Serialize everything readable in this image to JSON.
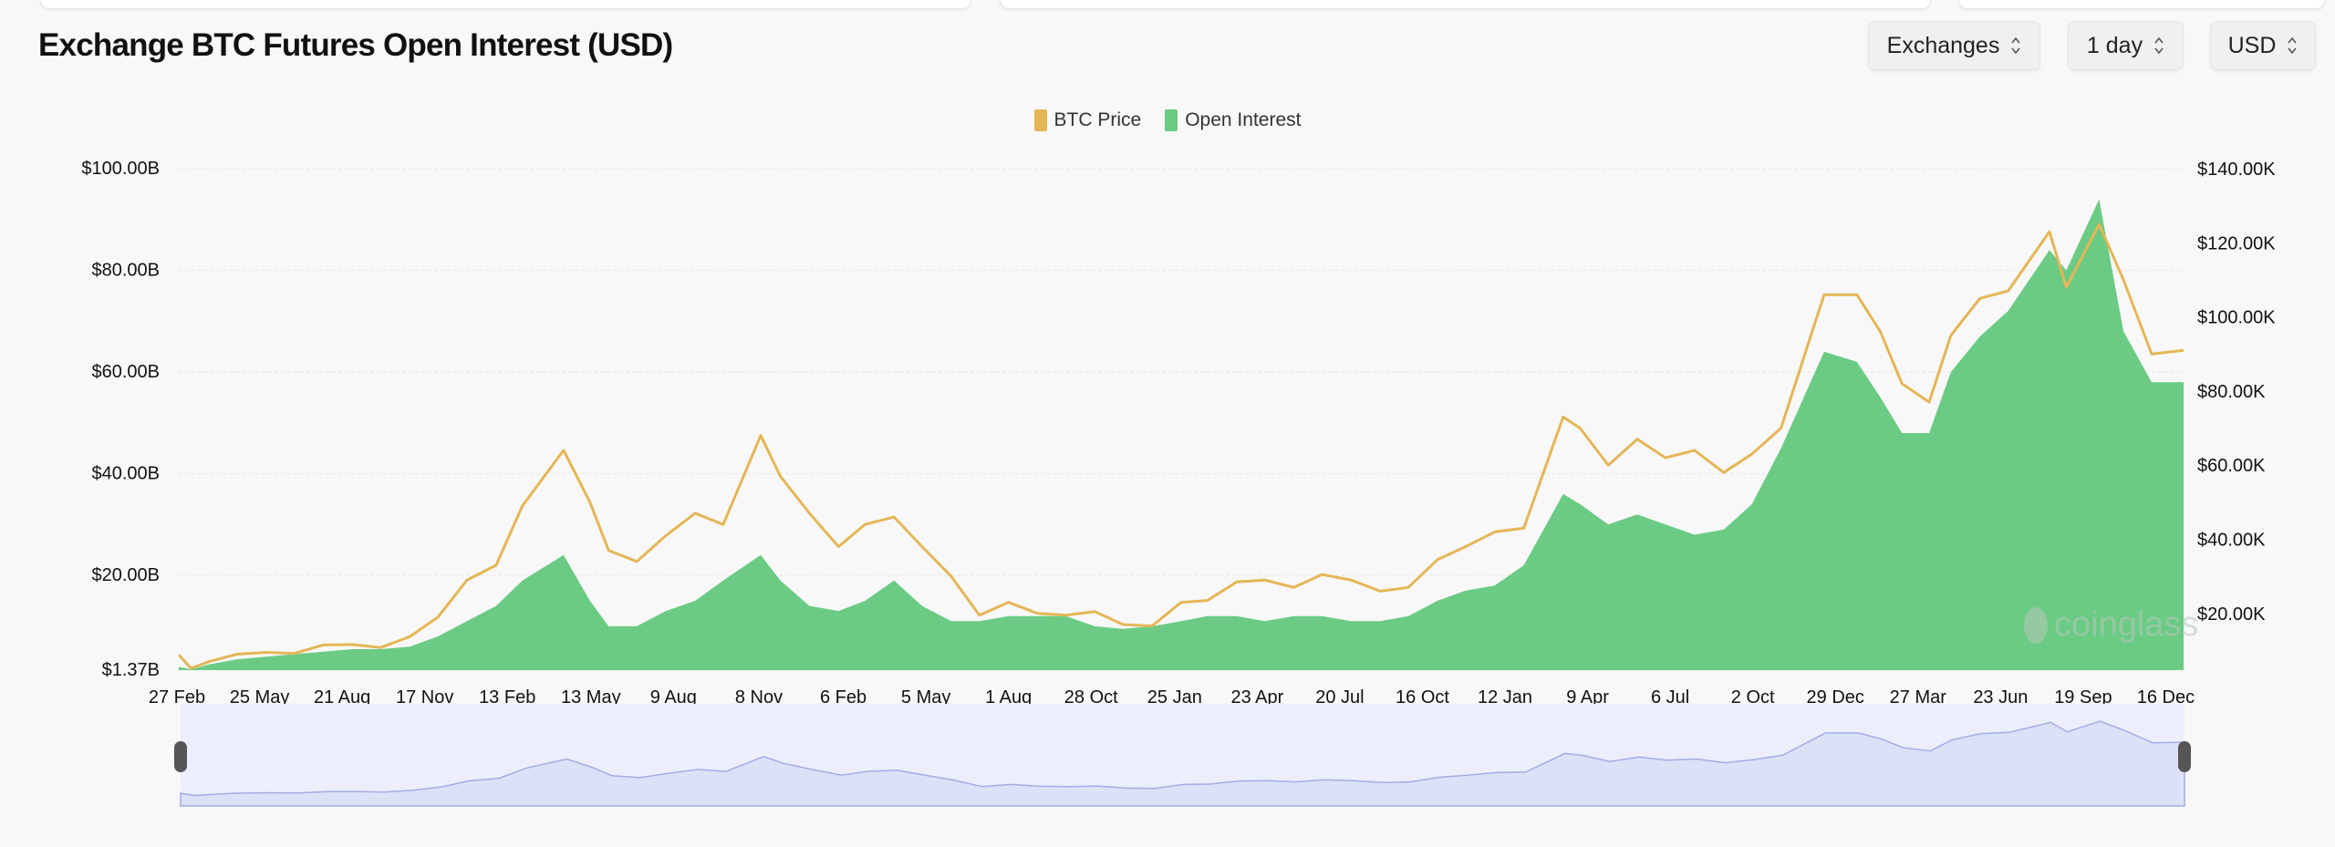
{
  "header": {
    "title": "Exchange BTC Futures Open Interest (USD)",
    "selectors": [
      {
        "label": "Exchanges",
        "icon": "chevron-up-down-icon"
      },
      {
        "label": "1 day",
        "icon": "chevron-up-down-icon"
      },
      {
        "label": "USD",
        "icon": "chevron-up-down-icon"
      }
    ]
  },
  "watermark": "coinglass",
  "colors": {
    "btc_price": "#e5b657",
    "open_interest": "#6bcb84",
    "navigator_fill": "#dde1f7",
    "navigator_line": "#a3ace6",
    "navigator_bg": "#eceefb"
  },
  "chart_data": {
    "type": "area",
    "title": "Exchange BTC Futures Open Interest (USD)",
    "legend": {
      "placement": "top-center",
      "entries": [
        "BTC Price",
        "Open Interest"
      ]
    },
    "grid": true,
    "x_range": [
      "2020-02-27",
      "2026-01-04"
    ],
    "x_ticks": [
      {
        "date": "2020-02-27",
        "label": "27 Feb"
      },
      {
        "date": "2020-05-25",
        "label": "25 May"
      },
      {
        "date": "2020-08-21",
        "label": "21 Aug"
      },
      {
        "date": "2020-11-17",
        "label": "17 Nov"
      },
      {
        "date": "2021-02-13",
        "label": "13 Feb"
      },
      {
        "date": "2021-05-13",
        "label": "13 May"
      },
      {
        "date": "2021-08-09",
        "label": "9 Aug"
      },
      {
        "date": "2021-11-08",
        "label": "8 Nov"
      },
      {
        "date": "2022-02-06",
        "label": "6 Feb"
      },
      {
        "date": "2022-05-05",
        "label": "5 May"
      },
      {
        "date": "2022-08-01",
        "label": "1 Aug"
      },
      {
        "date": "2022-10-28",
        "label": "28 Oct"
      },
      {
        "date": "2023-01-25",
        "label": "25 Jan"
      },
      {
        "date": "2023-04-23",
        "label": "23 Apr"
      },
      {
        "date": "2023-07-20",
        "label": "20 Jul"
      },
      {
        "date": "2023-10-16",
        "label": "16 Oct"
      },
      {
        "date": "2024-01-12",
        "label": "12 Jan"
      },
      {
        "date": "2024-04-09",
        "label": "9 Apr"
      },
      {
        "date": "2024-07-06",
        "label": "6 Jul"
      },
      {
        "date": "2024-10-02",
        "label": "2 Oct"
      },
      {
        "date": "2024-12-29",
        "label": "29 Dec"
      },
      {
        "date": "2025-03-27",
        "label": "27 Mar"
      },
      {
        "date": "2025-06-23",
        "label": "23 Jun"
      },
      {
        "date": "2025-09-19",
        "label": "19 Sep"
      },
      {
        "date": "2025-12-16",
        "label": "16 Dec"
      }
    ],
    "y_left": {
      "unit": "USD billions",
      "range": [
        1.37,
        100
      ],
      "ticks": [
        {
          "v": 100,
          "label": "$100.00B"
        },
        {
          "v": 80,
          "label": "$80.00B"
        },
        {
          "v": 60,
          "label": "$60.00B"
        },
        {
          "v": 40,
          "label": "$40.00B"
        },
        {
          "v": 20,
          "label": "$20.00B"
        },
        {
          "v": 1.37,
          "label": "$1.37B"
        }
      ]
    },
    "y_right": {
      "unit": "USD thousands",
      "range": [
        4.7,
        140
      ],
      "ticks": [
        {
          "v": 140,
          "label": "$140.00K"
        },
        {
          "v": 120,
          "label": "$120.00K"
        },
        {
          "v": 100,
          "label": "$100.00K"
        },
        {
          "v": 80,
          "label": "$80.00K"
        },
        {
          "v": 60,
          "label": "$60.00K"
        },
        {
          "v": 40,
          "label": "$40.00K"
        },
        {
          "v": 20,
          "label": "$20.00K"
        }
      ]
    },
    "x": [
      "2020-02-27",
      "2020-03-13",
      "2020-04-01",
      "2020-05-01",
      "2020-06-01",
      "2020-07-01",
      "2020-08-01",
      "2020-09-01",
      "2020-10-01",
      "2020-11-01",
      "2020-12-01",
      "2021-01-01",
      "2021-02-01",
      "2021-03-01",
      "2021-04-14",
      "2021-05-12",
      "2021-06-01",
      "2021-07-01",
      "2021-08-01",
      "2021-09-01",
      "2021-10-01",
      "2021-11-10",
      "2021-12-01",
      "2022-01-01",
      "2022-02-01",
      "2022-03-01",
      "2022-04-01",
      "2022-05-01",
      "2022-06-01",
      "2022-07-01",
      "2022-08-01",
      "2022-09-01",
      "2022-10-01",
      "2022-11-01",
      "2022-12-01",
      "2023-01-01",
      "2023-02-01",
      "2023-03-01",
      "2023-04-01",
      "2023-05-01",
      "2023-06-01",
      "2023-07-01",
      "2023-08-01",
      "2023-09-01",
      "2023-10-01",
      "2023-11-01",
      "2023-12-01",
      "2024-01-01",
      "2024-02-01",
      "2024-03-14",
      "2024-04-01",
      "2024-05-01",
      "2024-06-01",
      "2024-07-01",
      "2024-08-01",
      "2024-09-01",
      "2024-10-01",
      "2024-11-01",
      "2024-12-17",
      "2025-01-21",
      "2025-02-15",
      "2025-03-10",
      "2025-04-08",
      "2025-05-01",
      "2025-06-01",
      "2025-07-01",
      "2025-08-14",
      "2025-09-01",
      "2025-10-06",
      "2025-11-01",
      "2025-12-01",
      "2026-01-04"
    ],
    "series": [
      {
        "name": "BTC Price",
        "axis": "right",
        "unit": "K USD",
        "type": "line",
        "values": [
          8.8,
          5.2,
          7,
          9,
          9.5,
          9.2,
          11.5,
          11.6,
          10.8,
          13.7,
          19,
          29,
          33,
          49,
          64,
          50,
          37,
          34,
          41,
          47,
          44,
          68,
          57,
          47,
          38,
          44,
          46,
          38,
          30,
          19.5,
          23,
          20,
          19.5,
          20.5,
          17,
          16.6,
          23,
          23.5,
          28.5,
          29,
          27,
          30.5,
          29,
          26,
          27,
          34.5,
          38,
          42,
          43,
          73,
          70,
          60,
          67,
          62,
          64,
          58,
          63,
          70,
          106,
          106,
          96,
          82,
          77,
          95,
          105,
          107,
          123,
          108,
          125,
          110,
          90,
          91
        ]
      },
      {
        "name": "Open Interest",
        "axis": "left",
        "unit": "B USD",
        "type": "area",
        "values": [
          2,
          1.5,
          2.5,
          3.5,
          4,
          4.5,
          5,
          5.5,
          5.5,
          6,
          8,
          11,
          14,
          19,
          24,
          15,
          10,
          10,
          13,
          15,
          19,
          24,
          19,
          14,
          13,
          15,
          19,
          14,
          11,
          11,
          12,
          12,
          12,
          10,
          9.5,
          10,
          11,
          12,
          12,
          11,
          12,
          12,
          11,
          11,
          12,
          15,
          17,
          18,
          22,
          36,
          34,
          30,
          32,
          30,
          28,
          29,
          34,
          45,
          64,
          62,
          55,
          48,
          48,
          60,
          67,
          72,
          84,
          80,
          94,
          68,
          58,
          58
        ]
      }
    ]
  }
}
